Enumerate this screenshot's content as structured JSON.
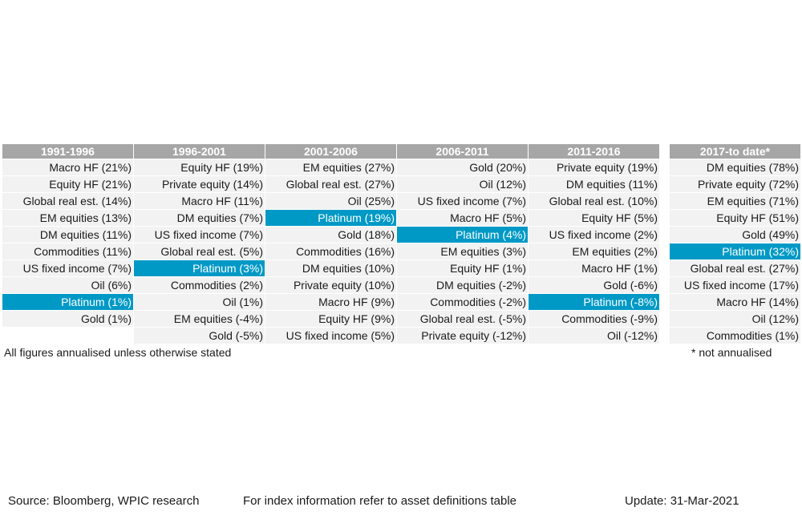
{
  "chart_data": {
    "type": "table",
    "columns": [
      {
        "header": "1991-1996",
        "rows": [
          "Macro HF (21%)",
          "Equity HF (21%)",
          "Global real est. (14%)",
          "EM equities (13%)",
          "DM equities (11%)",
          "Commodities (11%)",
          "US fixed income (7%)",
          "Oil (6%)",
          "Platinum (1%)",
          "Gold (1%)",
          ""
        ],
        "highlight_index": 8
      },
      {
        "header": "1996-2001",
        "rows": [
          "Equity HF (19%)",
          "Private equity (14%)",
          "Macro HF (11%)",
          "DM equities (7%)",
          "US fixed income (7%)",
          "Global real est. (5%)",
          "Platinum (3%)",
          "Commodities (2%)",
          "Oil (1%)",
          "EM equities (-4%)",
          "Gold (-5%)"
        ],
        "highlight_index": 6
      },
      {
        "header": "2001-2006",
        "rows": [
          "EM equities (27%)",
          "Global real est. (27%)",
          "Oil (25%)",
          "Platinum (19%)",
          "Gold (18%)",
          "Commodities (16%)",
          "DM equities (10%)",
          "Private equity (10%)",
          "Macro HF (9%)",
          "Equity HF (9%)",
          "US fixed income (5%)"
        ],
        "highlight_index": 3
      },
      {
        "header": "2006-2011",
        "rows": [
          "Gold (20%)",
          "Oil (12%)",
          "US fixed income (7%)",
          "Macro HF (5%)",
          "Platinum (4%)",
          "EM equities (3%)",
          "Equity HF (1%)",
          "DM equities (-2%)",
          "Commodities (-2%)",
          "Global real est. (-5%)",
          "Private equity (-12%)"
        ],
        "highlight_index": 4
      },
      {
        "header": "2011-2016",
        "rows": [
          "Private equity (19%)",
          "DM equities (11%)",
          "Global real est. (10%)",
          "Equity HF (5%)",
          "US fixed income (2%)",
          "EM equities (2%)",
          "Macro HF (1%)",
          "Gold (-6%)",
          "Platinum (-8%)",
          "Commodities (-9%)",
          "Oil (-12%)"
        ],
        "highlight_index": 8
      },
      {
        "header": "2017-to date*",
        "rows": [
          "DM equities (78%)",
          "Private equity (72%)",
          "EM equities (71%)",
          "Equity HF (51%)",
          "Gold (49%)",
          "Platinum (32%)",
          "Global real est. (27%)",
          "US fixed income (17%)",
          "Macro HF (14%)",
          "Oil (12%)",
          "Commodities (1%)"
        ],
        "highlight_index": 5
      }
    ],
    "highlight_color": "#0099c6",
    "header_color": "#a6a6a6",
    "cell_color": "#f2f2f2"
  },
  "notes": {
    "annualised": "All figures annualised unless otherwise stated",
    "not_annualised": "* not annualised"
  },
  "footer": {
    "source": "Source: Bloomberg, WPIC research",
    "index_info": "For index information refer to asset definitions table",
    "update": "Update: 31-Mar-2021"
  }
}
